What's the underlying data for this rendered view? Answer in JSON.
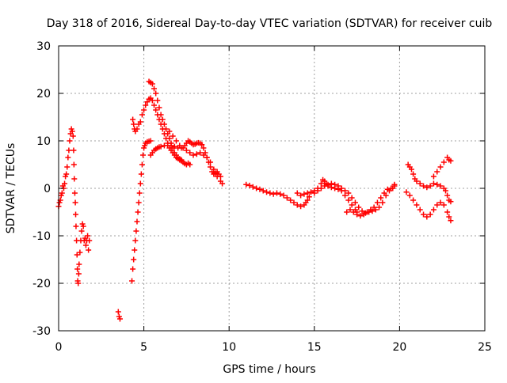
{
  "chart_data": {
    "type": "scatter",
    "title": "Day 318 of 2016, Sidereal Day-to-day VTEC variation (SDTVAR) for receiver cuib",
    "xlabel": "GPS time / hours",
    "ylabel": "SDTVAR / TECUs",
    "xlim": [
      0,
      25
    ],
    "ylim": [
      -30,
      30
    ],
    "xticks": [
      0,
      5,
      10,
      15,
      20,
      25
    ],
    "yticks": [
      -30,
      -20,
      -10,
      0,
      10,
      20,
      30
    ],
    "xtick_labels": [
      "0",
      "5",
      "10",
      "15",
      "20",
      "25"
    ],
    "ytick_labels": [
      "-30",
      "-20",
      "-10",
      "0",
      "10",
      "20",
      "30"
    ],
    "grid": true,
    "marker": "+",
    "colors": {
      "series": "#ff0000",
      "grid": "#a0a0a0",
      "axes": "#000000"
    },
    "series": [
      {
        "name": "cuib",
        "points": [
          [
            0.0,
            -3.8
          ],
          [
            0.05,
            -3.0
          ],
          [
            0.1,
            -2.5
          ],
          [
            0.15,
            -1.5
          ],
          [
            0.2,
            -1.0
          ],
          [
            0.25,
            0.5
          ],
          [
            0.3,
            0.0
          ],
          [
            0.35,
            1.0
          ],
          [
            0.4,
            2.5
          ],
          [
            0.45,
            3.0
          ],
          [
            0.5,
            4.5
          ],
          [
            0.55,
            6.5
          ],
          [
            0.6,
            8.0
          ],
          [
            0.65,
            10.0
          ],
          [
            0.7,
            11.5
          ],
          [
            0.75,
            12.5
          ],
          [
            0.8,
            12.0
          ],
          [
            0.85,
            11.0
          ],
          [
            0.88,
            8.0
          ],
          [
            0.9,
            5.0
          ],
          [
            0.92,
            2.0
          ],
          [
            0.95,
            -1.0
          ],
          [
            0.98,
            -3.0
          ],
          [
            1.0,
            -5.5
          ],
          [
            1.02,
            -8.0
          ],
          [
            1.05,
            -11.0
          ],
          [
            1.08,
            -14.0
          ],
          [
            1.1,
            -17.0
          ],
          [
            1.12,
            -19.5
          ],
          [
            1.15,
            -20.0
          ],
          [
            1.18,
            -18.0
          ],
          [
            1.2,
            -16.0
          ],
          [
            1.25,
            -13.5
          ],
          [
            1.3,
            -11.0
          ],
          [
            1.35,
            -9.0
          ],
          [
            1.4,
            -7.5
          ],
          [
            1.45,
            -8.0
          ],
          [
            1.5,
            -11.0
          ],
          [
            1.55,
            -10.5
          ],
          [
            1.6,
            -12.0
          ],
          [
            1.65,
            -11.0
          ],
          [
            1.7,
            -10.0
          ],
          [
            1.75,
            -13.0
          ],
          [
            1.8,
            -11.0
          ],
          [
            3.5,
            -26.0
          ],
          [
            3.55,
            -27.0
          ],
          [
            3.6,
            -27.5
          ],
          [
            4.3,
            -19.5
          ],
          [
            4.35,
            -17.0
          ],
          [
            4.4,
            -15.0
          ],
          [
            4.45,
            -13.0
          ],
          [
            4.5,
            -11.0
          ],
          [
            4.55,
            -9.0
          ],
          [
            4.6,
            -7.0
          ],
          [
            4.65,
            -5.0
          ],
          [
            4.7,
            -3.0
          ],
          [
            4.75,
            -1.0
          ],
          [
            4.8,
            1.0
          ],
          [
            4.85,
            3.0
          ],
          [
            4.9,
            5.0
          ],
          [
            4.95,
            7.0
          ],
          [
            5.0,
            8.5
          ],
          [
            5.05,
            9.0
          ],
          [
            5.1,
            9.5
          ],
          [
            5.2,
            9.8
          ],
          [
            5.3,
            9.9
          ],
          [
            5.4,
            10.0
          ],
          [
            4.35,
            14.5
          ],
          [
            4.4,
            13.5
          ],
          [
            4.45,
            12.5
          ],
          [
            4.5,
            12.0
          ],
          [
            4.6,
            12.5
          ],
          [
            4.7,
            13.5
          ],
          [
            4.8,
            14.0
          ],
          [
            4.9,
            15.5
          ],
          [
            5.0,
            16.5
          ],
          [
            5.1,
            17.5
          ],
          [
            5.2,
            18.2
          ],
          [
            5.3,
            18.8
          ],
          [
            5.4,
            19.0
          ],
          [
            5.5,
            18.5
          ],
          [
            5.6,
            17.5
          ],
          [
            5.7,
            16.5
          ],
          [
            5.8,
            15.5
          ],
          [
            5.9,
            14.5
          ],
          [
            6.0,
            13.5
          ],
          [
            6.1,
            12.5
          ],
          [
            6.2,
            11.5
          ],
          [
            6.3,
            10.5
          ],
          [
            6.4,
            9.5
          ],
          [
            6.5,
            8.5
          ],
          [
            6.6,
            8.0
          ],
          [
            6.7,
            7.5
          ],
          [
            6.8,
            7.0
          ],
          [
            6.9,
            6.5
          ],
          [
            7.0,
            6.3
          ],
          [
            7.1,
            6.0
          ],
          [
            7.2,
            5.8
          ],
          [
            7.3,
            5.5
          ],
          [
            7.4,
            5.2
          ],
          [
            7.5,
            5.0
          ],
          [
            7.6,
            5.3
          ],
          [
            7.7,
            5.0
          ],
          [
            5.3,
            22.5
          ],
          [
            5.4,
            22.3
          ],
          [
            5.5,
            22.0
          ],
          [
            5.6,
            21.0
          ],
          [
            5.7,
            20.0
          ],
          [
            5.8,
            18.5
          ],
          [
            5.9,
            17.0
          ],
          [
            6.0,
            15.5
          ],
          [
            6.1,
            14.5
          ],
          [
            6.2,
            13.5
          ],
          [
            6.3,
            12.5
          ],
          [
            6.4,
            11.5
          ],
          [
            6.5,
            10.5
          ],
          [
            6.6,
            9.5
          ],
          [
            6.7,
            8.5
          ],
          [
            6.8,
            7.5
          ],
          [
            6.9,
            7.0
          ],
          [
            7.0,
            6.5
          ],
          [
            7.1,
            6.2
          ],
          [
            7.2,
            6.0
          ],
          [
            5.4,
            7.0
          ],
          [
            5.5,
            7.5
          ],
          [
            5.6,
            8.0
          ],
          [
            5.7,
            8.3
          ],
          [
            5.8,
            8.5
          ],
          [
            5.9,
            8.7
          ],
          [
            6.0,
            8.8
          ],
          [
            6.2,
            9.0
          ],
          [
            6.4,
            9.0
          ],
          [
            6.6,
            9.0
          ],
          [
            6.8,
            8.8
          ],
          [
            7.0,
            8.5
          ],
          [
            7.2,
            8.5
          ],
          [
            7.4,
            9.0
          ],
          [
            7.5,
            9.5
          ],
          [
            7.6,
            10.0
          ],
          [
            7.7,
            9.8
          ],
          [
            7.8,
            9.5
          ],
          [
            7.9,
            9.2
          ],
          [
            8.0,
            9.3
          ],
          [
            8.1,
            9.5
          ],
          [
            8.2,
            9.6
          ],
          [
            8.3,
            9.5
          ],
          [
            8.4,
            9.2
          ],
          [
            8.5,
            8.5
          ],
          [
            8.6,
            7.5
          ],
          [
            8.7,
            6.5
          ],
          [
            8.8,
            5.5
          ],
          [
            8.9,
            4.5
          ],
          [
            9.0,
            3.5
          ],
          [
            9.1,
            3.0
          ],
          [
            9.2,
            3.2
          ],
          [
            9.3,
            3.5
          ],
          [
            9.4,
            3.0
          ],
          [
            9.5,
            2.5
          ],
          [
            6.5,
            12.0
          ],
          [
            6.7,
            11.0
          ],
          [
            6.9,
            10.0
          ],
          [
            7.1,
            9.0
          ],
          [
            7.3,
            8.5
          ],
          [
            7.5,
            8.0
          ],
          [
            7.7,
            7.5
          ],
          [
            7.9,
            7.0
          ],
          [
            8.1,
            7.2
          ],
          [
            8.3,
            7.5
          ],
          [
            8.5,
            7.0
          ],
          [
            8.7,
            6.5
          ],
          [
            8.9,
            5.5
          ],
          [
            9.1,
            4.0
          ],
          [
            9.3,
            2.5
          ],
          [
            9.5,
            1.5
          ],
          [
            9.6,
            1.0
          ],
          [
            11.0,
            0.8
          ],
          [
            11.2,
            0.6
          ],
          [
            11.4,
            0.3
          ],
          [
            11.6,
            0.0
          ],
          [
            11.8,
            -0.2
          ],
          [
            12.0,
            -0.5
          ],
          [
            12.2,
            -0.8
          ],
          [
            12.4,
            -1.0
          ],
          [
            12.6,
            -1.2
          ],
          [
            12.8,
            -1.0
          ],
          [
            13.0,
            -1.2
          ],
          [
            13.2,
            -1.5
          ],
          [
            13.4,
            -2.0
          ],
          [
            13.6,
            -2.5
          ],
          [
            13.8,
            -3.0
          ],
          [
            14.0,
            -3.5
          ],
          [
            14.2,
            -3.8
          ],
          [
            14.4,
            -3.5
          ],
          [
            14.5,
            -3.0
          ],
          [
            14.6,
            -2.5
          ],
          [
            14.7,
            -1.8
          ],
          [
            14.0,
            -1.0
          ],
          [
            14.2,
            -1.5
          ],
          [
            14.4,
            -1.2
          ],
          [
            14.6,
            -1.0
          ],
          [
            14.8,
            -0.8
          ],
          [
            15.0,
            -0.5
          ],
          [
            15.2,
            0.0
          ],
          [
            15.4,
            1.0
          ],
          [
            15.5,
            1.8
          ],
          [
            15.6,
            1.5
          ],
          [
            15.7,
            1.0
          ],
          [
            15.8,
            0.5
          ],
          [
            16.0,
            0.2
          ],
          [
            16.2,
            0.0
          ],
          [
            16.4,
            -0.2
          ],
          [
            16.6,
            -0.5
          ],
          [
            16.8,
            -1.5
          ],
          [
            17.0,
            -2.5
          ],
          [
            17.2,
            -3.5
          ],
          [
            17.4,
            -4.5
          ],
          [
            17.5,
            -5.0
          ],
          [
            15.0,
            -1.0
          ],
          [
            15.2,
            -0.5
          ],
          [
            15.4,
            0.0
          ],
          [
            15.6,
            0.5
          ],
          [
            15.8,
            0.8
          ],
          [
            16.0,
            1.0
          ],
          [
            16.2,
            0.8
          ],
          [
            16.4,
            0.5
          ],
          [
            16.6,
            0.0
          ],
          [
            16.8,
            -0.5
          ],
          [
            17.0,
            -1.0
          ],
          [
            17.2,
            -2.0
          ],
          [
            17.4,
            -3.0
          ],
          [
            17.6,
            -4.0
          ],
          [
            17.8,
            -4.8
          ],
          [
            18.0,
            -5.2
          ],
          [
            18.2,
            -5.0
          ],
          [
            18.4,
            -4.8
          ],
          [
            18.6,
            -4.5
          ],
          [
            18.8,
            -4.0
          ],
          [
            19.0,
            -3.0
          ],
          [
            19.2,
            -1.5
          ],
          [
            19.4,
            -0.5
          ],
          [
            19.6,
            0.0
          ],
          [
            19.7,
            0.5
          ],
          [
            16.9,
            -5.0
          ],
          [
            17.1,
            -4.5
          ],
          [
            17.3,
            -5.0
          ],
          [
            17.5,
            -5.5
          ],
          [
            17.7,
            -5.8
          ],
          [
            17.9,
            -5.5
          ],
          [
            18.1,
            -5.0
          ],
          [
            18.3,
            -4.5
          ],
          [
            18.5,
            -4.0
          ],
          [
            18.7,
            -3.0
          ],
          [
            18.9,
            -2.0
          ],
          [
            19.1,
            -1.0
          ],
          [
            19.3,
            -0.2
          ],
          [
            19.5,
            0.0
          ],
          [
            19.7,
            0.8
          ],
          [
            20.5,
            5.0
          ],
          [
            20.6,
            4.5
          ],
          [
            20.7,
            4.0
          ],
          [
            20.8,
            3.0
          ],
          [
            20.9,
            2.0
          ],
          [
            21.0,
            1.5
          ],
          [
            21.2,
            1.0
          ],
          [
            21.4,
            0.5
          ],
          [
            21.6,
            0.2
          ],
          [
            21.8,
            0.5
          ],
          [
            22.0,
            1.0
          ],
          [
            22.2,
            0.8
          ],
          [
            22.4,
            0.5
          ],
          [
            22.6,
            0.0
          ],
          [
            22.7,
            -0.5
          ],
          [
            22.8,
            -1.5
          ],
          [
            22.9,
            -2.5
          ],
          [
            23.0,
            -2.8
          ],
          [
            20.4,
            -0.8
          ],
          [
            20.6,
            -1.5
          ],
          [
            20.8,
            -2.5
          ],
          [
            21.0,
            -3.5
          ],
          [
            21.2,
            -4.5
          ],
          [
            21.4,
            -5.5
          ],
          [
            21.6,
            -6.0
          ],
          [
            21.8,
            -5.5
          ],
          [
            22.0,
            -4.5
          ],
          [
            22.2,
            -3.5
          ],
          [
            22.4,
            -3.0
          ],
          [
            22.6,
            -3.5
          ],
          [
            22.8,
            -5.0
          ],
          [
            22.9,
            -6.0
          ],
          [
            23.0,
            -6.8
          ],
          [
            22.0,
            2.5
          ],
          [
            22.2,
            3.5
          ],
          [
            22.4,
            4.5
          ],
          [
            22.6,
            5.5
          ],
          [
            22.8,
            6.5
          ],
          [
            22.9,
            6.0
          ],
          [
            23.0,
            5.8
          ]
        ]
      }
    ]
  }
}
